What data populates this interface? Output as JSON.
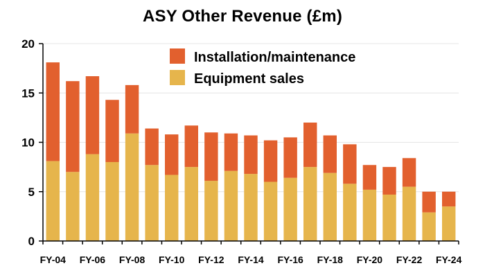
{
  "chart_data": {
    "type": "bar",
    "stacked": true,
    "title": "ASY Other Revenue (£m)",
    "xlabel": "",
    "ylabel": "",
    "ylim": [
      0,
      20
    ],
    "yticks": [
      0,
      5,
      10,
      15,
      20
    ],
    "grid": true,
    "legend_position": "top-right",
    "categories": [
      "FY-04",
      "FY-05",
      "FY-06",
      "FY-07",
      "FY-08",
      "FY-09",
      "FY-10",
      "FY-11",
      "FY-12",
      "FY-13",
      "FY-14",
      "FY-15",
      "FY-16",
      "FY-17",
      "FY-18",
      "FY-19",
      "FY-20",
      "FY-21",
      "FY-22",
      "FY-23",
      "FY-24"
    ],
    "xtick_labels": [
      "FY-04",
      "FY-06",
      "FY-08",
      "FY-10",
      "FY-12",
      "FY-14",
      "FY-16",
      "FY-18",
      "FY-20",
      "FY-22",
      "FY-24"
    ],
    "series": [
      {
        "name": "Equipment sales",
        "color": "#E6B54C",
        "values": [
          8.1,
          7.0,
          8.8,
          8.0,
          10.9,
          7.7,
          6.7,
          7.5,
          6.1,
          7.1,
          6.8,
          6.0,
          6.4,
          7.5,
          6.9,
          5.8,
          5.2,
          4.7,
          5.5,
          2.9,
          3.5
        ]
      },
      {
        "name": "Installation/maintenance",
        "color": "#E2602E",
        "values": [
          10.0,
          9.2,
          7.9,
          6.3,
          4.9,
          3.7,
          4.1,
          4.2,
          4.9,
          3.8,
          3.9,
          4.2,
          4.1,
          4.5,
          3.8,
          4.0,
          2.5,
          2.8,
          2.9,
          2.1,
          1.5
        ]
      }
    ]
  }
}
